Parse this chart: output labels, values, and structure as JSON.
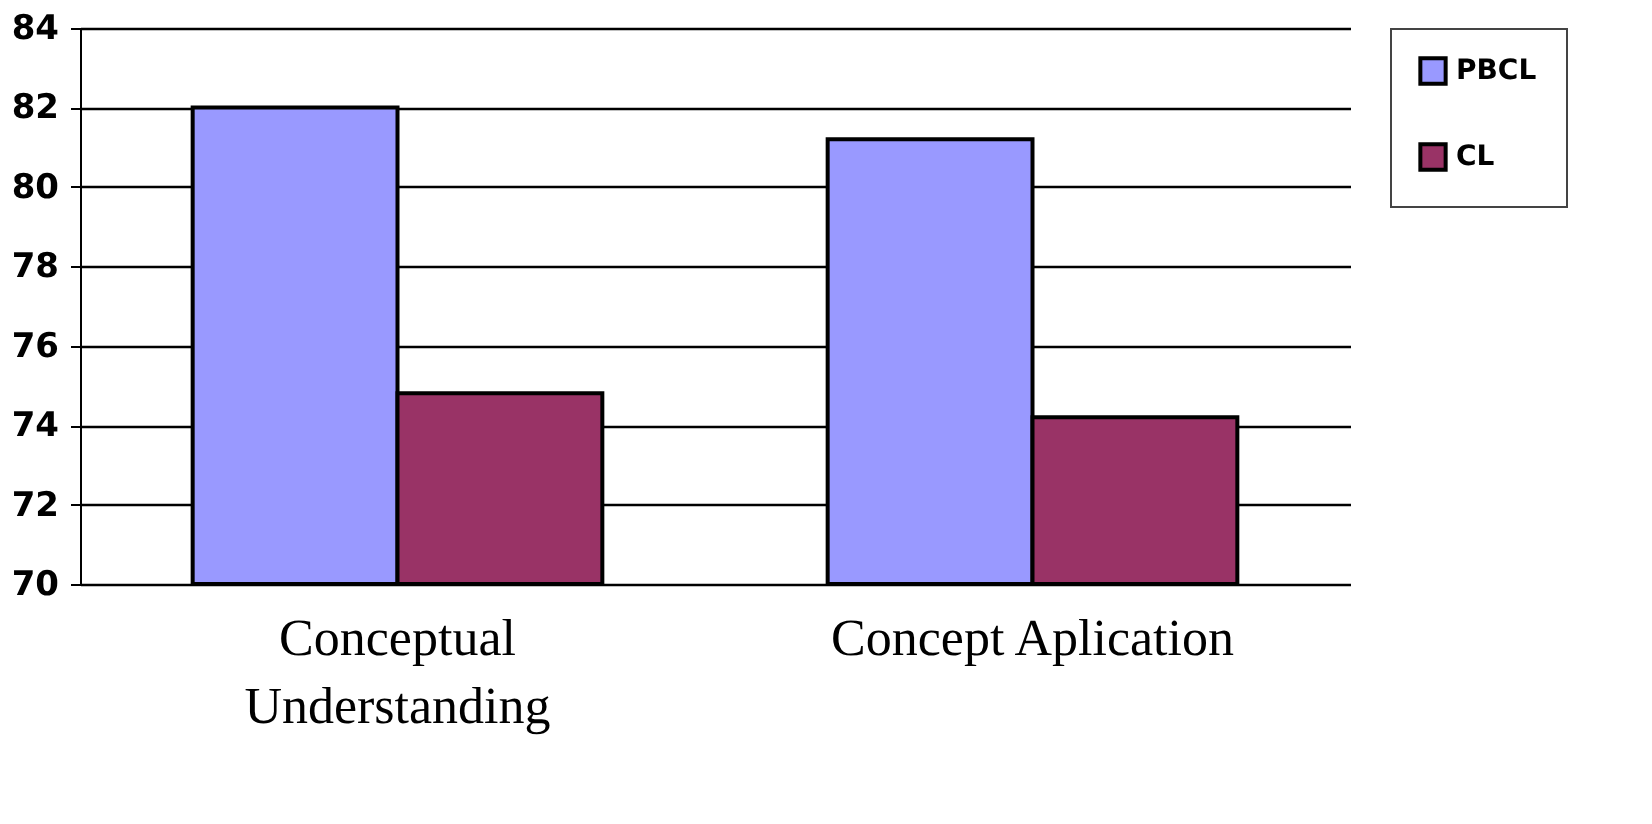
{
  "chart_data": {
    "type": "bar",
    "categories": [
      "Conceptual\nUnderstanding",
      "Concept Aplication"
    ],
    "series": [
      {
        "name": "PBCL",
        "color": "#9999ff",
        "values": [
          82.0,
          81.2
        ]
      },
      {
        "name": "CL",
        "color": "#993366",
        "values": [
          74.8,
          74.2
        ]
      }
    ],
    "ylim": [
      70,
      84
    ],
    "yticks": [
      70,
      72,
      74,
      76,
      78,
      80,
      82,
      84
    ],
    "grid": "y",
    "legend": "right"
  }
}
